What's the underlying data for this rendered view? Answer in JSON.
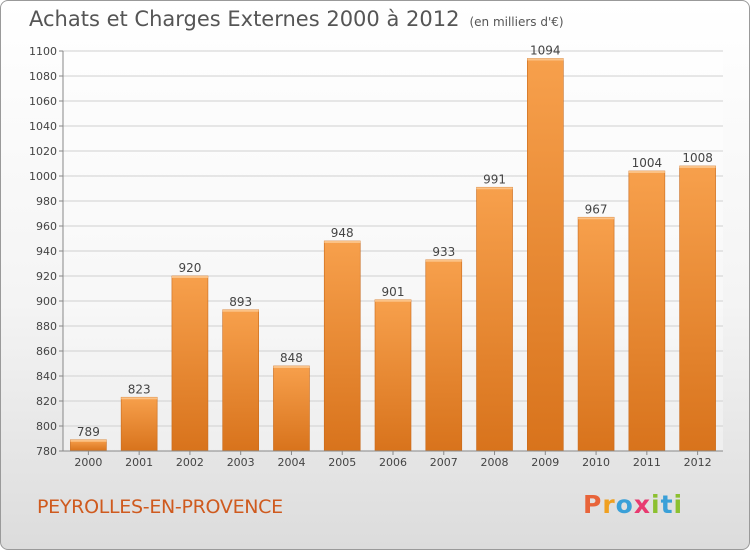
{
  "header": {
    "title": "Achats et Charges Externes 2000 à 2012",
    "unit": "(en milliers d'€)"
  },
  "footer": {
    "commune": "PEYROLLES-EN-PROVENCE",
    "logo_letters": [
      "P",
      "r",
      "o",
      "x",
      "i",
      "t",
      "i"
    ],
    "logo_colors": [
      "#e8643a",
      "#f0a020",
      "#3aa0d8",
      "#e83a70",
      "#8cc030",
      "#3aa0d8",
      "#8cc030"
    ]
  },
  "chart_data": {
    "type": "bar",
    "categories": [
      "2000",
      "2001",
      "2002",
      "2003",
      "2004",
      "2005",
      "2006",
      "2007",
      "2008",
      "2009",
      "2010",
      "2011",
      "2012"
    ],
    "values": [
      789,
      823,
      920,
      893,
      848,
      948,
      901,
      933,
      991,
      1094,
      967,
      1004,
      1008
    ],
    "ylim": [
      780,
      1100
    ],
    "yticks": [
      780,
      800,
      820,
      840,
      860,
      880,
      900,
      920,
      940,
      960,
      980,
      1000,
      1020,
      1040,
      1060,
      1080,
      1100
    ],
    "grid": true,
    "bar_color": "#f0913a"
  }
}
